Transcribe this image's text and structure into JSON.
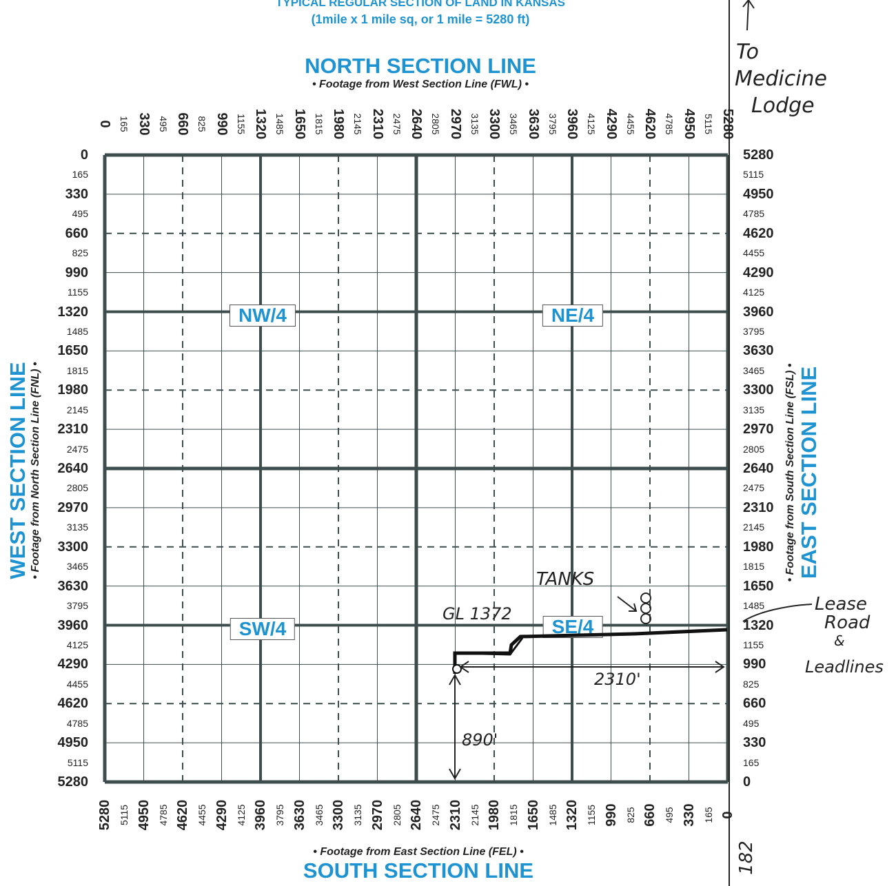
{
  "header": {
    "line1": "TYPICAL REGULAR SECTION OF LAND IN KANSAS",
    "line2": "(1mile x 1 mile sq, or 1 mile = 5280 ft)"
  },
  "north": {
    "title": "NORTH SECTION LINE",
    "subtitle": "• Footage from West Section Line (FWL) •"
  },
  "south": {
    "title": "SOUTH SECTION LINE",
    "subtitle": "• Footage from East Section Line (FEL) •"
  },
  "west": {
    "title": "WEST SECTION LINE",
    "subtitle": "• Footage from North Section Line (FNL) •"
  },
  "east": {
    "title": "EAST SECTION LINE",
    "subtitle": "• Footage from South Section Line (FSL) •"
  },
  "quadrants": {
    "nw": "NW/4",
    "ne": "NE/4",
    "sw": "SW/4",
    "se": "SE/4"
  },
  "ticks": {
    "forward": [
      "0",
      "165",
      "330",
      "495",
      "660",
      "825",
      "990",
      "1155",
      "1320",
      "1485",
      "1650",
      "1815",
      "1980",
      "2145",
      "2310",
      "2475",
      "2640",
      "2805",
      "2970",
      "3135",
      "3300",
      "3465",
      "3630",
      "3795",
      "3960",
      "4125",
      "4290",
      "4455",
      "4620",
      "4785",
      "4950",
      "5115",
      "5280"
    ],
    "reverse": [
      "5280",
      "5115",
      "4950",
      "4785",
      "4620",
      "4455",
      "4290",
      "4125",
      "3960",
      "3795",
      "3630",
      "3465",
      "3300",
      "3135",
      "2970",
      "2805",
      "2640",
      "2475",
      "2310",
      "2145",
      "1980",
      "1815",
      "1650",
      "1485",
      "1320",
      "1155",
      "990",
      "825",
      "660",
      "495",
      "330",
      "165",
      "0"
    ]
  },
  "annotations": {
    "to": "To",
    "medicine": "Medicine",
    "lodge": "Lodge",
    "tanks": "TANKS",
    "gl": "GL 1372",
    "lease": "Lease",
    "road": "Road",
    "amp": "&",
    "leadlines": "Leadlines",
    "fsl": "890'",
    "fel": "2310'",
    "road_num": "182"
  },
  "colors": {
    "accent": "#1d93d1",
    "grid": "#3d4d4d",
    "ink": "#222222"
  }
}
